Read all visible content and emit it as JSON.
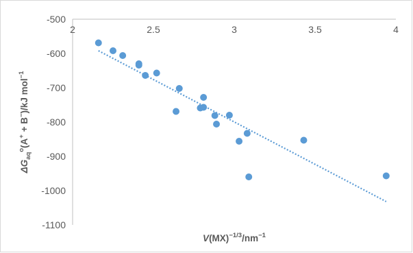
{
  "chart_data": {
    "type": "scatter",
    "title": "",
    "xlabel": {
      "symbol": "V",
      "main": "(MX)",
      "superscript": "−1/3",
      "unit": "/nm",
      "unit_superscript": "−1"
    },
    "ylabel": {
      "prefix": "ΔG",
      "subscript": "aq",
      "superscript": "o",
      "rest": "(A",
      "plus_sup": "+",
      "mid": " + B",
      "minus_sup": "−",
      "unit": ")/kJ mol",
      "unit_sup": "−1"
    },
    "xlim": [
      2,
      4
    ],
    "ylim": [
      -1100,
      -500
    ],
    "x_axis_crosses_y_at": -500,
    "x_ticks": [
      2,
      2.5,
      3,
      3.5,
      4
    ],
    "x_tick_labels": [
      "2",
      "2.5",
      "3",
      "3.5",
      "4"
    ],
    "y_ticks": [
      -500,
      -600,
      -700,
      -800,
      -900,
      -1000,
      -1100
    ],
    "y_tick_labels": [
      "-500",
      "-600",
      "-700",
      "-800",
      "-900",
      "-1000",
      "-1100"
    ],
    "grid": false,
    "marker_color": "#5b9bd5",
    "trendline": {
      "type": "linear",
      "style": "dotted",
      "color": "#5b9bd5",
      "x_range": [
        2.16,
        3.94
      ],
      "y_values": [
        -592,
        -1032
      ]
    },
    "points": [
      {
        "x": 2.16,
        "y": -569
      },
      {
        "x": 2.25,
        "y": -592
      },
      {
        "x": 2.31,
        "y": -606
      },
      {
        "x": 2.41,
        "y": -630
      },
      {
        "x": 2.41,
        "y": -634
      },
      {
        "x": 2.45,
        "y": -664
      },
      {
        "x": 2.52,
        "y": -657
      },
      {
        "x": 2.64,
        "y": -769
      },
      {
        "x": 2.66,
        "y": -702
      },
      {
        "x": 2.79,
        "y": -759
      },
      {
        "x": 2.81,
        "y": -757
      },
      {
        "x": 2.81,
        "y": -728
      },
      {
        "x": 2.88,
        "y": -781
      },
      {
        "x": 2.89,
        "y": -806
      },
      {
        "x": 2.97,
        "y": -780
      },
      {
        "x": 3.03,
        "y": -856
      },
      {
        "x": 3.08,
        "y": -833
      },
      {
        "x": 3.09,
        "y": -960
      },
      {
        "x": 3.43,
        "y": -853
      },
      {
        "x": 3.94,
        "y": -957
      }
    ]
  }
}
